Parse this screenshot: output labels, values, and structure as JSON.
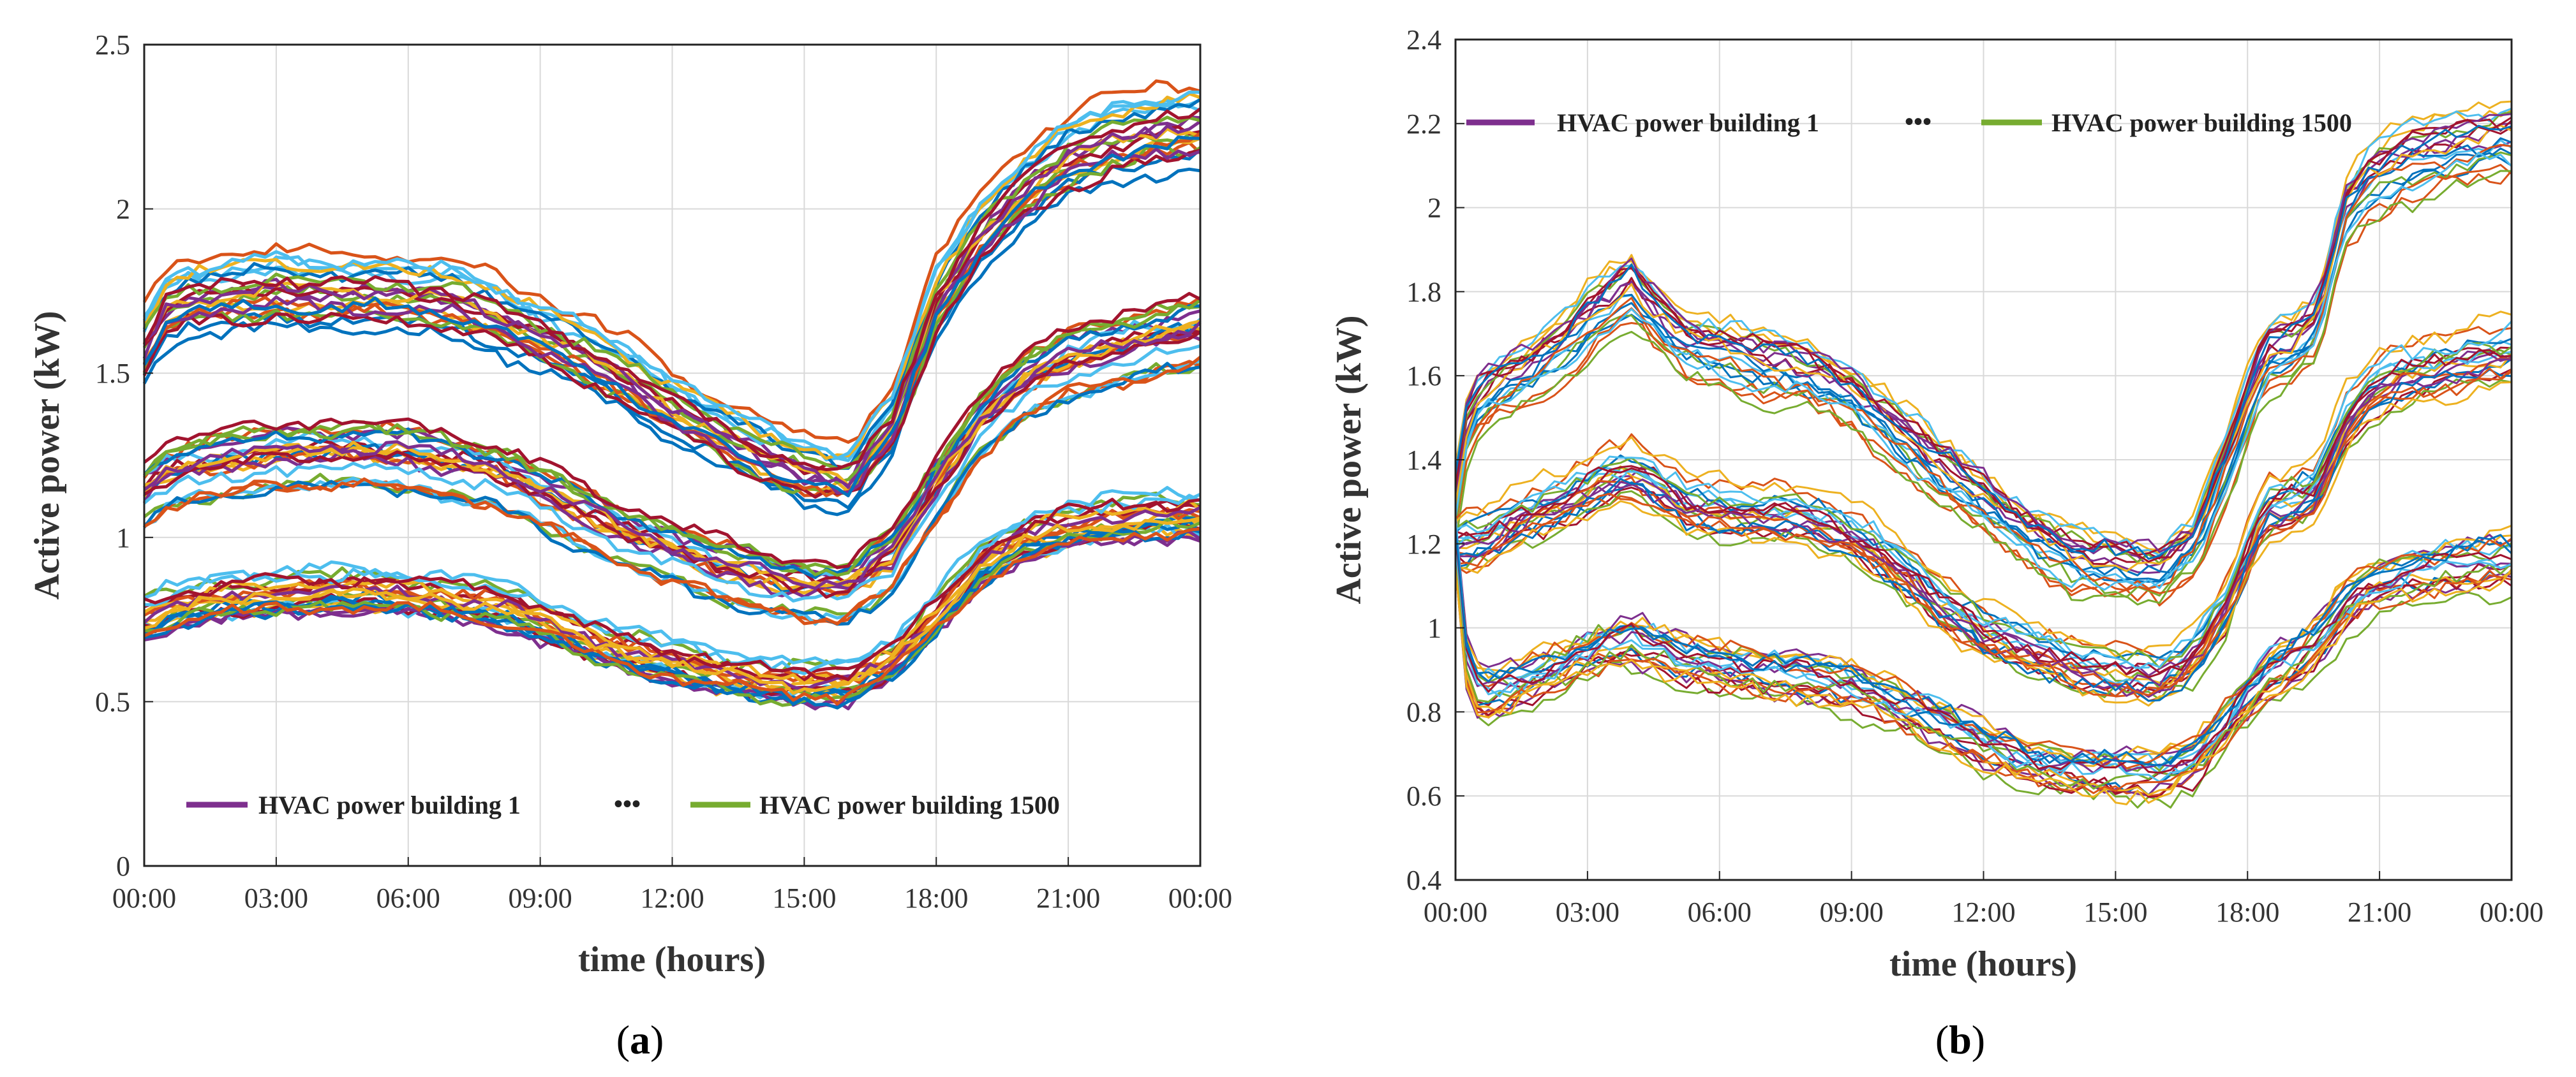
{
  "palette": [
    "#0072BD",
    "#D95319",
    "#EDB120",
    "#7E2F8E",
    "#77AC30",
    "#4DBEEE",
    "#A2142F"
  ],
  "legend_colors": {
    "first": "#7E2F8E",
    "last": "#77AC30"
  },
  "chart_data": [
    {
      "id": "a",
      "type": "line",
      "caption_open": "(",
      "caption_letter": "a",
      "caption_close": ")",
      "title": "",
      "xlabel": "time (hours)",
      "ylabel": "Active power (kW)",
      "ylim": [
        0,
        2.5
      ],
      "xticks": [
        "00:00",
        "03:00",
        "06:00",
        "09:00",
        "12:00",
        "15:00",
        "18:00",
        "21:00",
        "00:00"
      ],
      "yticks": [
        "0",
        "0.5",
        "1",
        "1.5",
        "2",
        "2.5"
      ],
      "ytick_values": [
        0,
        0.5,
        1,
        1.5,
        2,
        2.5
      ],
      "grid": true,
      "legend_position": "bottom",
      "legend": {
        "first": "HVAC power building 1",
        "ellipsis": "•••",
        "last": "HVAC power building 1500"
      },
      "hours": [
        0,
        0.5,
        1,
        2,
        3,
        4,
        5,
        6,
        7,
        8,
        9,
        10,
        11,
        12,
        13,
        14,
        15,
        16,
        17,
        18,
        19,
        20,
        21,
        22,
        23,
        24
      ],
      "bands": [
        {
          "name": "upper",
          "spread": 0.07,
          "profile": [
            1.58,
            1.7,
            1.73,
            1.74,
            1.76,
            1.75,
            1.75,
            1.74,
            1.73,
            1.68,
            1.62,
            1.56,
            1.49,
            1.4,
            1.33,
            1.26,
            1.21,
            1.18,
            1.35,
            1.72,
            1.93,
            2.06,
            2.16,
            2.21,
            2.24,
            2.25
          ]
        },
        {
          "name": "middle",
          "spread": 0.08,
          "profile": [
            1.13,
            1.18,
            1.2,
            1.22,
            1.25,
            1.25,
            1.25,
            1.24,
            1.22,
            1.19,
            1.12,
            1.06,
            1.0,
            0.95,
            0.9,
            0.87,
            0.84,
            0.83,
            0.93,
            1.15,
            1.34,
            1.46,
            1.53,
            1.57,
            1.6,
            1.62
          ]
        },
        {
          "name": "lower",
          "spread": 0.07,
          "profile": [
            0.76,
            0.78,
            0.8,
            0.82,
            0.83,
            0.84,
            0.84,
            0.83,
            0.82,
            0.8,
            0.75,
            0.7,
            0.66,
            0.62,
            0.59,
            0.57,
            0.56,
            0.56,
            0.63,
            0.77,
            0.92,
            1.0,
            1.04,
            1.06,
            1.07,
            1.07
          ]
        }
      ],
      "lines_per_band": 22
    },
    {
      "id": "b",
      "type": "line",
      "caption_open": "(",
      "caption_letter": "b",
      "caption_close": ")",
      "title": "",
      "xlabel": "time (hours)",
      "ylabel": "Active power (kW)",
      "ylim": [
        0.4,
        2.4
      ],
      "xticks": [
        "00:00",
        "03:00",
        "06:00",
        "09:00",
        "12:00",
        "15:00",
        "18:00",
        "21:00",
        "00:00"
      ],
      "yticks": [
        "0.4",
        "0.6",
        "0.8",
        "1",
        "1.2",
        "1.4",
        "1.6",
        "1.8",
        "2",
        "2.2",
        "2.4"
      ],
      "ytick_values": [
        0.4,
        0.6,
        0.8,
        1.0,
        1.2,
        1.4,
        1.6,
        1.8,
        2.0,
        2.2,
        2.4
      ],
      "grid": true,
      "legend_position": "top-left",
      "legend": {
        "first": "HVAC power building 1",
        "ellipsis": "•••",
        "last": "HVAC power building 1500"
      },
      "hours": [
        0,
        0.3,
        0.8,
        1.5,
        2.5,
        3.3,
        4,
        4.7,
        5.3,
        6,
        7,
        8,
        9,
        10,
        11,
        12,
        13,
        14,
        15,
        16,
        16.8,
        17.5,
        18.4,
        19,
        19.6,
        20.2,
        20.8,
        21.5,
        22.5,
        23.3,
        24
      ],
      "bands": [
        {
          "name": "upper",
          "spread": 0.055,
          "profile": [
            1.3,
            1.5,
            1.56,
            1.6,
            1.67,
            1.75,
            1.8,
            1.72,
            1.67,
            1.65,
            1.62,
            1.6,
            1.55,
            1.46,
            1.37,
            1.3,
            1.22,
            1.16,
            1.14,
            1.13,
            1.2,
            1.38,
            1.64,
            1.66,
            1.72,
            1.98,
            2.06,
            2.1,
            2.13,
            2.15,
            2.16
          ]
        },
        {
          "name": "middle",
          "spread": 0.055,
          "profile": [
            1.2,
            1.2,
            1.22,
            1.26,
            1.3,
            1.35,
            1.37,
            1.33,
            1.29,
            1.28,
            1.27,
            1.26,
            1.22,
            1.15,
            1.06,
            0.99,
            0.95,
            0.91,
            0.89,
            0.88,
            0.93,
            1.05,
            1.28,
            1.3,
            1.33,
            1.48,
            1.56,
            1.6,
            1.62,
            1.64,
            1.65
          ]
        },
        {
          "name": "lower",
          "spread": 0.05,
          "profile": [
            1.2,
            0.86,
            0.84,
            0.87,
            0.91,
            0.95,
            0.97,
            0.94,
            0.92,
            0.91,
            0.89,
            0.88,
            0.86,
            0.82,
            0.77,
            0.72,
            0.68,
            0.66,
            0.65,
            0.65,
            0.68,
            0.77,
            0.88,
            0.92,
            0.96,
            1.05,
            1.1,
            1.12,
            1.14,
            1.15,
            1.16
          ]
        }
      ],
      "lines_per_band": 22
    }
  ]
}
